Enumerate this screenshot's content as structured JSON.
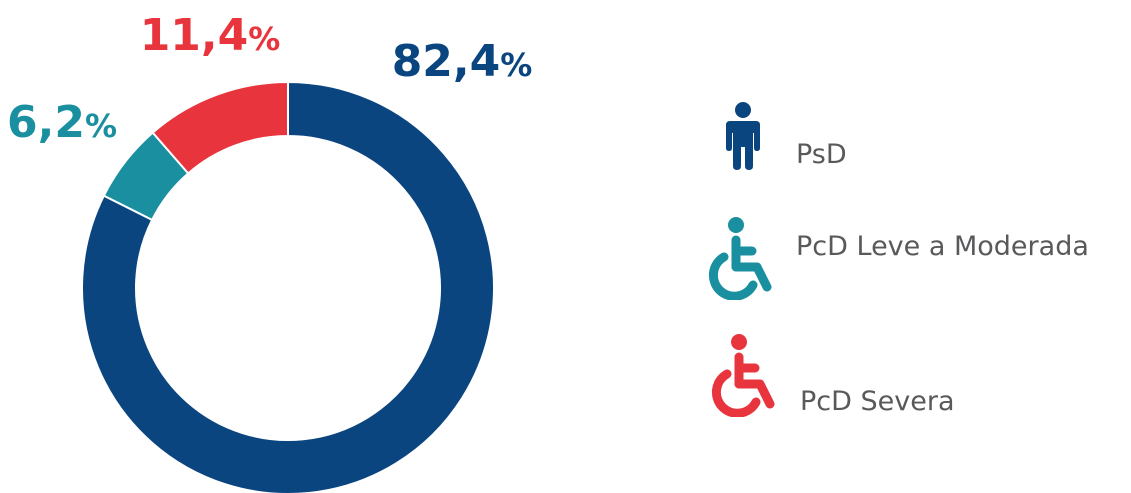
{
  "chart_data": {
    "type": "pie",
    "variant": "donut",
    "slices": [
      {
        "label": "PsD",
        "value": 82.4,
        "display": "82,4",
        "color": "#0b4580"
      },
      {
        "label": "PcD Leve a Moderada",
        "value": 6.2,
        "display": "6,2",
        "color": "#1a8fa0"
      },
      {
        "label": "PcD Severa",
        "value": 11.4,
        "display": "11,4",
        "color": "#e8353d"
      }
    ],
    "unit": "%",
    "start_angle": "12 o'clock",
    "direction": "clockwise",
    "legend_position": "right"
  },
  "legend": [
    {
      "label": "PsD",
      "icon": "person-standing-icon",
      "color": "#0b4580"
    },
    {
      "label": "PcD Leve a Moderada",
      "icon": "wheelchair-icon",
      "color": "#1a8fa0"
    },
    {
      "label": "PcD Severa",
      "icon": "wheelchair-icon",
      "color": "#e8353d"
    }
  ]
}
